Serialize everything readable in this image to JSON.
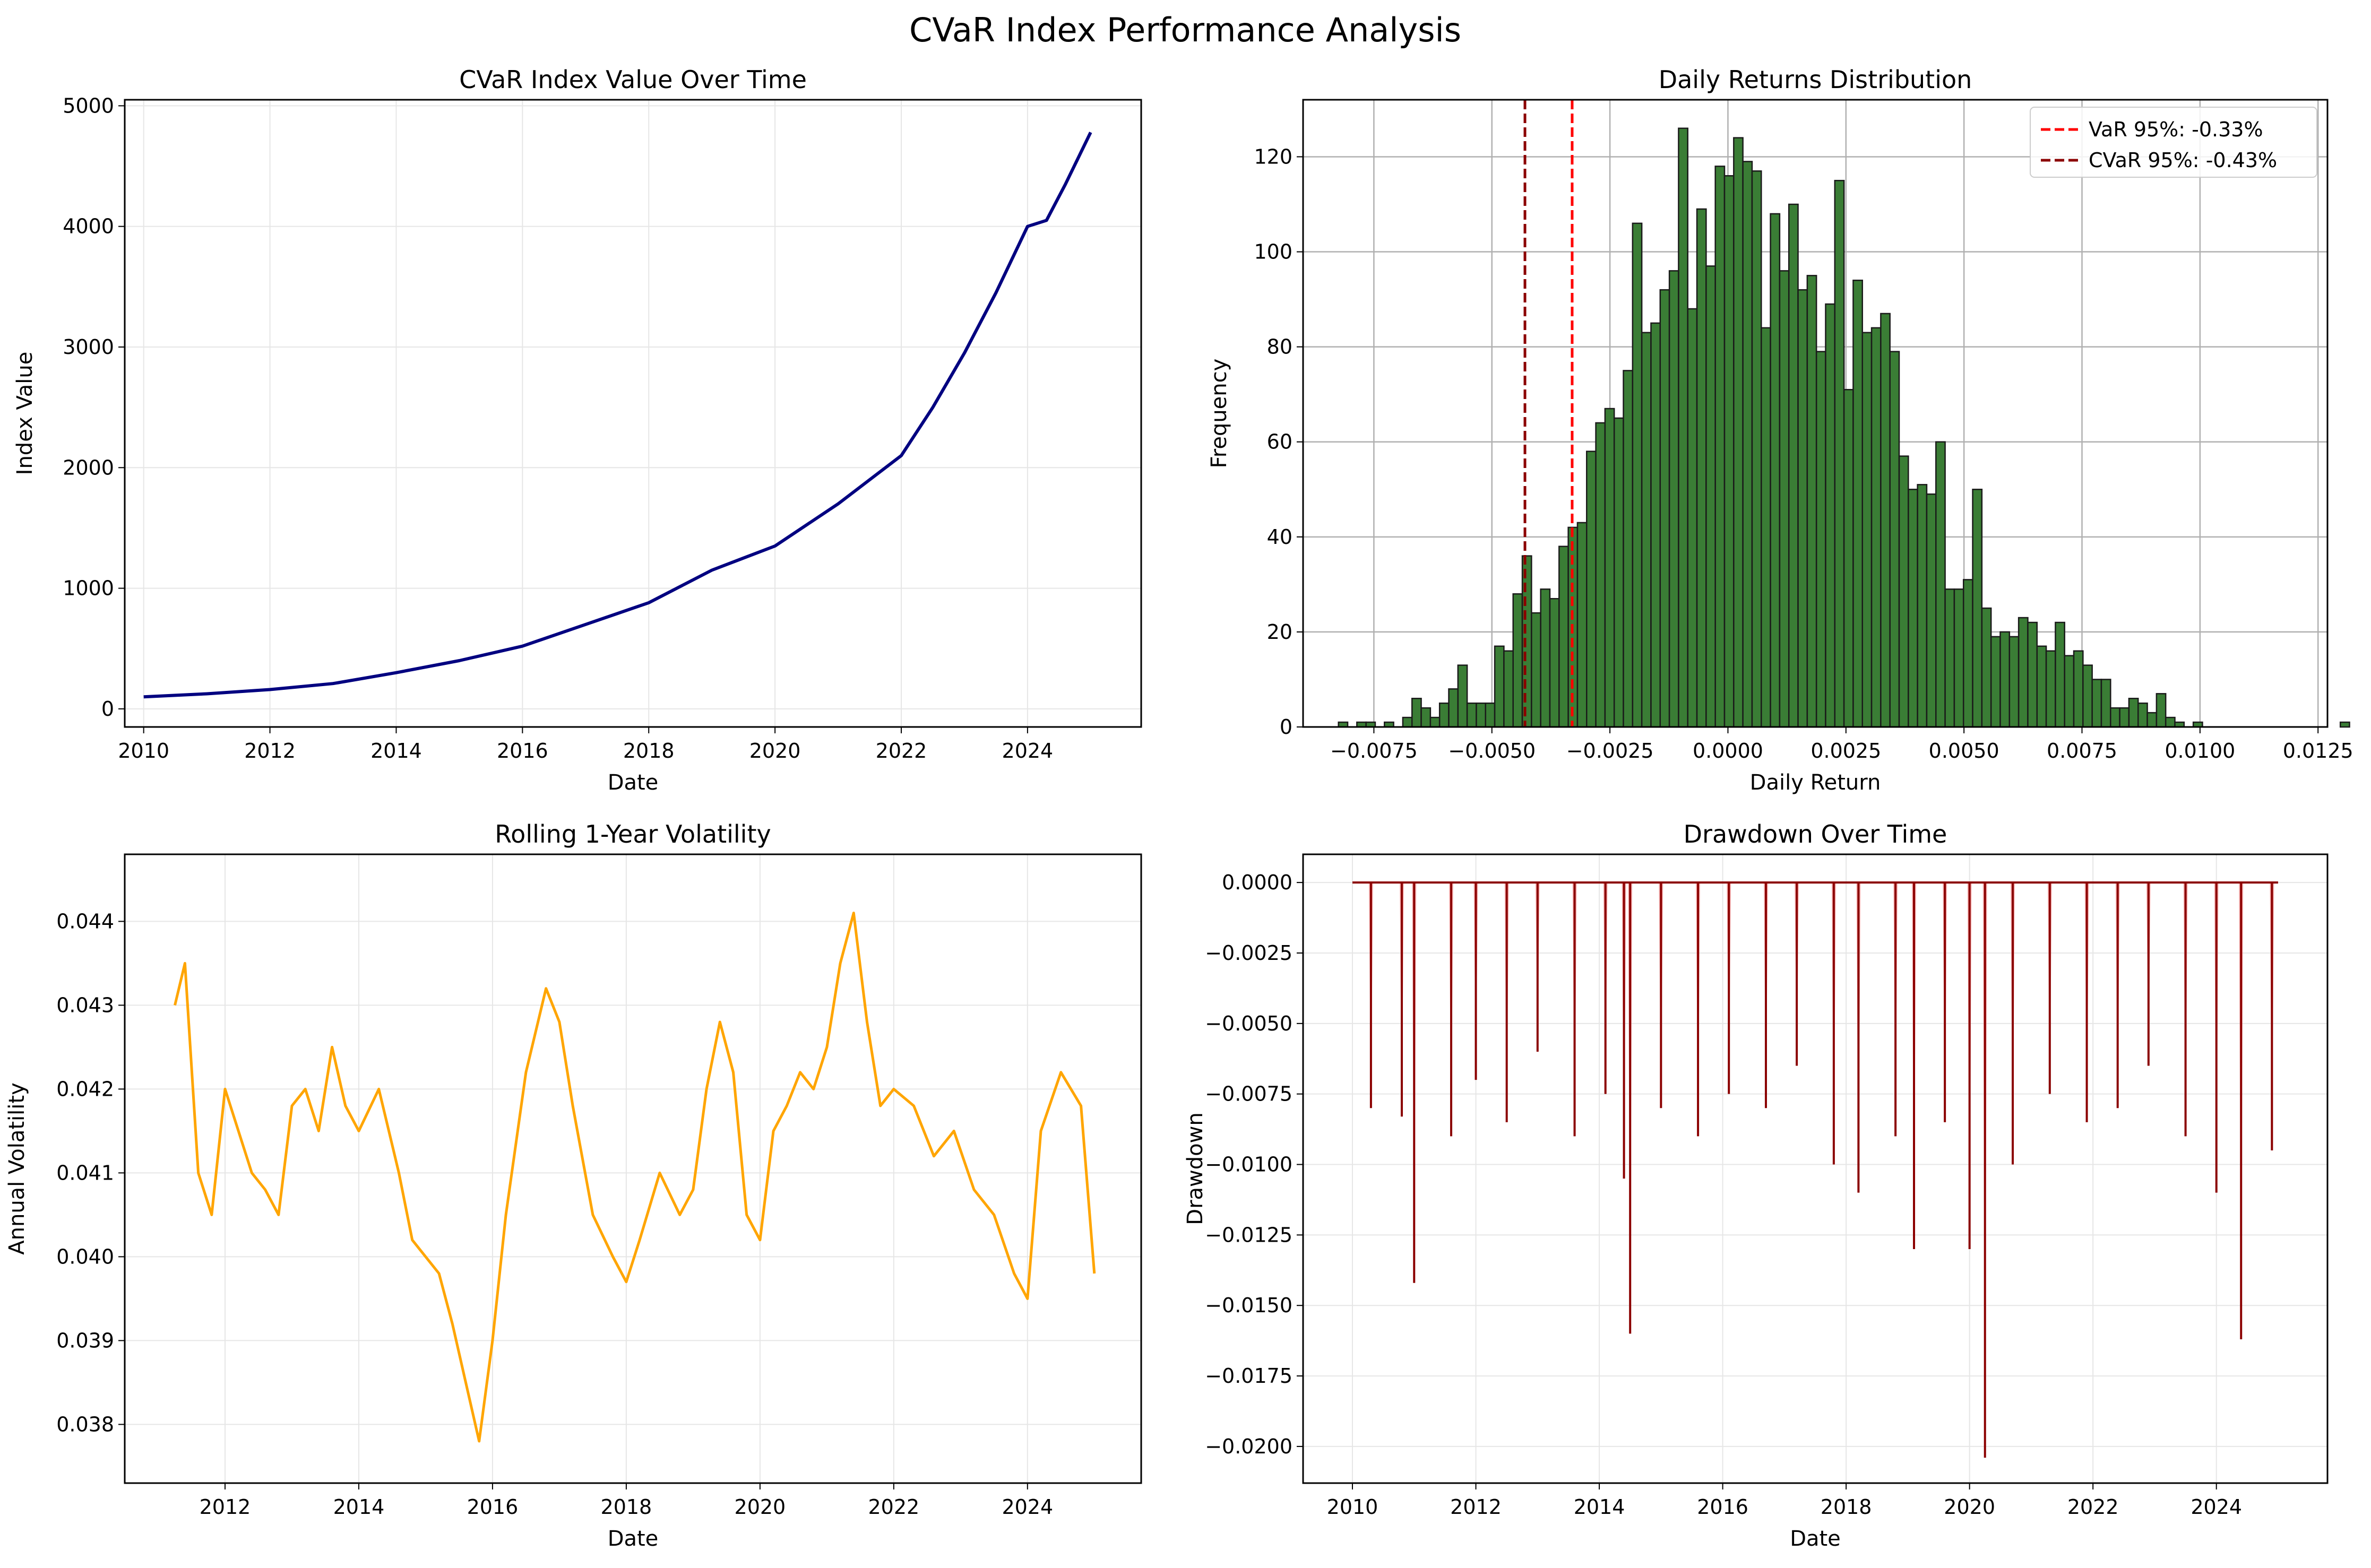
{
  "figure": {
    "suptitle": "CVaR Index Performance Analysis"
  },
  "chart_data": [
    {
      "type": "line",
      "title": "CVaR Index Value Over Time",
      "xlabel": "Date",
      "ylabel": "Index Value",
      "xlim": [
        2009.7,
        2025.8
      ],
      "ylim": [
        -150,
        5050
      ],
      "xticks": [
        "2010",
        "2012",
        "2014",
        "2016",
        "2018",
        "2020",
        "2022",
        "2024"
      ],
      "yticks": [
        "0",
        "1000",
        "2000",
        "3000",
        "4000",
        "5000"
      ],
      "grid": true,
      "series": [
        {
          "color": "#000080",
          "x": [
            2010,
            2011,
            2012,
            2013,
            2014,
            2015,
            2016,
            2017,
            2018,
            2019,
            2020,
            2021,
            2022,
            2022.5,
            2023,
            2023.5,
            2024,
            2024.3,
            2024.6,
            2025
          ],
          "y": [
            100,
            125,
            160,
            210,
            300,
            400,
            520,
            700,
            880,
            1150,
            1350,
            1700,
            2100,
            2500,
            2950,
            3450,
            4000,
            4050,
            4350,
            4780
          ]
        }
      ]
    },
    {
      "type": "bar",
      "title": "Daily Returns Distribution",
      "xlabel": "Daily Return",
      "ylabel": "Frequency",
      "xlim": [
        -0.009,
        0.0127
      ],
      "ylim": [
        0,
        132
      ],
      "xticks": [
        "−0.0075",
        "−0.0050",
        "−0.0025",
        "0.0000",
        "0.0025",
        "0.0050",
        "0.0075",
        "0.0100",
        "0.0125"
      ],
      "yticks": [
        "0",
        "20",
        "40",
        "60",
        "80",
        "100",
        "120"
      ],
      "grid": true,
      "bar_color": "#3a7d35",
      "bin_start": -0.00825,
      "bin_width": 0.0001947,
      "values": [
        1,
        0,
        1,
        1,
        0,
        1,
        0,
        2,
        6,
        4,
        2,
        5,
        8,
        13,
        5,
        5,
        5,
        17,
        16,
        28,
        36,
        24,
        29,
        27,
        38,
        42,
        43,
        58,
        64,
        67,
        65,
        75,
        106,
        83,
        85,
        92,
        96,
        126,
        88,
        109,
        97,
        118,
        116,
        124,
        119,
        117,
        84,
        108,
        96,
        110,
        92,
        95,
        79,
        89,
        115,
        71,
        94,
        83,
        84,
        87,
        79,
        57,
        50,
        51,
        49,
        60,
        29,
        29,
        31,
        50,
        25,
        19,
        20,
        19,
        23,
        22,
        17,
        16,
        22,
        15,
        16,
        13,
        10,
        10,
        4,
        4,
        6,
        5,
        3,
        7,
        2,
        1,
        0,
        1,
        0,
        0,
        0,
        0,
        0,
        0,
        0,
        0,
        0,
        0,
        0,
        0,
        0,
        0,
        0,
        1
      ],
      "vlines": [
        {
          "x": -0.0033,
          "color": "#ff0000",
          "label": "VaR 95%: -0.33%"
        },
        {
          "x": -0.0043,
          "color": "#8b0000",
          "label": "CVaR 95%: -0.43%"
        }
      ],
      "legend": "top-right"
    },
    {
      "type": "line",
      "title": "Rolling 1-Year Volatility",
      "xlabel": "Date",
      "ylabel": "Annual Volatility",
      "xlim": [
        2010.5,
        2025.7
      ],
      "ylim": [
        0.0373,
        0.0448
      ],
      "xticks": [
        "2012",
        "2014",
        "2016",
        "2018",
        "2020",
        "2022",
        "2024"
      ],
      "yticks": [
        "0.038",
        "0.039",
        "0.040",
        "0.041",
        "0.042",
        "0.043",
        "0.044"
      ],
      "grid": true,
      "series": [
        {
          "color": "#ffa500",
          "x": [
            2011.25,
            2011.4,
            2011.6,
            2011.8,
            2012.0,
            2012.2,
            2012.4,
            2012.6,
            2012.8,
            2013.0,
            2013.2,
            2013.4,
            2013.6,
            2013.8,
            2014.0,
            2014.3,
            2014.6,
            2014.8,
            2015.0,
            2015.2,
            2015.4,
            2015.6,
            2015.8,
            2016.0,
            2016.2,
            2016.5,
            2016.8,
            2017.0,
            2017.2,
            2017.5,
            2017.8,
            2018.0,
            2018.2,
            2018.5,
            2018.8,
            2019.0,
            2019.2,
            2019.4,
            2019.6,
            2019.8,
            2020.0,
            2020.2,
            2020.4,
            2020.6,
            2020.8,
            2021.0,
            2021.2,
            2021.4,
            2021.6,
            2021.8,
            2022.0,
            2022.3,
            2022.6,
            2022.9,
            2023.2,
            2023.5,
            2023.8,
            2024.0,
            2024.2,
            2024.5,
            2024.8,
            2025.0
          ],
          "y": [
            0.043,
            0.0435,
            0.041,
            0.0405,
            0.042,
            0.0415,
            0.041,
            0.0408,
            0.0405,
            0.0418,
            0.042,
            0.0415,
            0.0425,
            0.0418,
            0.0415,
            0.042,
            0.041,
            0.0402,
            0.04,
            0.0398,
            0.0392,
            0.0385,
            0.0378,
            0.039,
            0.0405,
            0.0422,
            0.0432,
            0.0428,
            0.0418,
            0.0405,
            0.04,
            0.0397,
            0.0402,
            0.041,
            0.0405,
            0.0408,
            0.042,
            0.0428,
            0.0422,
            0.0405,
            0.0402,
            0.0415,
            0.0418,
            0.0422,
            0.042,
            0.0425,
            0.0435,
            0.0441,
            0.0428,
            0.0418,
            0.042,
            0.0418,
            0.0412,
            0.0415,
            0.0408,
            0.0405,
            0.0398,
            0.0395,
            0.0415,
            0.0422,
            0.0418,
            0.0398
          ]
        }
      ]
    },
    {
      "type": "area",
      "title": "Drawdown Over Time",
      "xlabel": "Date",
      "ylabel": "Drawdown",
      "xlim": [
        2009.2,
        2025.8
      ],
      "ylim": [
        -0.0213,
        0.001
      ],
      "xticks": [
        "2010",
        "2012",
        "2014",
        "2016",
        "2018",
        "2020",
        "2022",
        "2024"
      ],
      "yticks": [
        "0.0000",
        "−0.0025",
        "−0.0050",
        "−0.0075",
        "−0.0100",
        "−0.0125",
        "−0.0150",
        "−0.0175",
        "−0.0200"
      ],
      "grid": true,
      "line_color": "#8b0000",
      "fill_color": "#f08080",
      "spikes": [
        {
          "x": 2010.3,
          "y": -0.008
        },
        {
          "x": 2010.8,
          "y": -0.0083
        },
        {
          "x": 2011.0,
          "y": -0.0142
        },
        {
          "x": 2011.6,
          "y": -0.009
        },
        {
          "x": 2012.0,
          "y": -0.007
        },
        {
          "x": 2012.5,
          "y": -0.0085
        },
        {
          "x": 2013.0,
          "y": -0.006
        },
        {
          "x": 2013.6,
          "y": -0.009
        },
        {
          "x": 2014.1,
          "y": -0.0075
        },
        {
          "x": 2014.4,
          "y": -0.0105
        },
        {
          "x": 2014.5,
          "y": -0.016
        },
        {
          "x": 2015.0,
          "y": -0.008
        },
        {
          "x": 2015.6,
          "y": -0.009
        },
        {
          "x": 2016.1,
          "y": -0.0075
        },
        {
          "x": 2016.7,
          "y": -0.008
        },
        {
          "x": 2017.2,
          "y": -0.0065
        },
        {
          "x": 2017.8,
          "y": -0.01
        },
        {
          "x": 2018.2,
          "y": -0.011
        },
        {
          "x": 2018.8,
          "y": -0.009
        },
        {
          "x": 2019.1,
          "y": -0.013
        },
        {
          "x": 2019.6,
          "y": -0.0085
        },
        {
          "x": 2020.0,
          "y": -0.013
        },
        {
          "x": 2020.25,
          "y": -0.0204
        },
        {
          "x": 2020.7,
          "y": -0.01
        },
        {
          "x": 2021.3,
          "y": -0.0075
        },
        {
          "x": 2021.9,
          "y": -0.0085
        },
        {
          "x": 2022.4,
          "y": -0.008
        },
        {
          "x": 2022.9,
          "y": -0.0065
        },
        {
          "x": 2023.5,
          "y": -0.009
        },
        {
          "x": 2024.0,
          "y": -0.011
        },
        {
          "x": 2024.4,
          "y": -0.0162
        },
        {
          "x": 2024.9,
          "y": -0.0095
        }
      ]
    }
  ]
}
